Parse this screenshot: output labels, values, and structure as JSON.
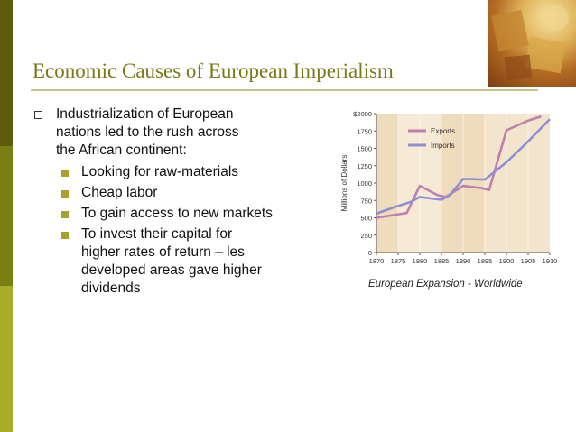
{
  "slide": {
    "title": "Economic Causes of European Imperialism",
    "main_bullet": [
      "Industrialization of European",
      "nations led to the rush across",
      "the African continent:"
    ],
    "sub_bullets": [
      {
        "lines": [
          "Looking for raw-materials"
        ]
      },
      {
        "lines": [
          "Cheap labor"
        ]
      },
      {
        "lines": [
          "To gain access to new markets"
        ]
      },
      {
        "lines": [
          "To invest their capital for",
          "higher rates of return – les",
          "developed areas gave higher",
          "dividends"
        ]
      }
    ],
    "caption": "European Expansion - Worldwide",
    "colors": {
      "accent": "#7a7817",
      "bullet": "#a6a12b",
      "exports": "#c07fb0",
      "imports": "#8f90d4"
    }
  },
  "chart_data": {
    "type": "line",
    "x": [
      1870,
      1875,
      1880,
      1885,
      1890,
      1895,
      1900,
      1905,
      1910
    ],
    "x_tick_labels": [
      "1870",
      "1875",
      "1880",
      "1885",
      "1890",
      "1895",
      "1900",
      "1905",
      "1910"
    ],
    "y_tick_labels": [
      "0",
      "250",
      "500",
      "750",
      "1000",
      "1250",
      "1500",
      "1750",
      "$2000"
    ],
    "ylabel": "Millions of Dollars",
    "ylim": [
      0,
      2000
    ],
    "xlim": [
      1870,
      1910
    ],
    "series": [
      {
        "name": "Exports",
        "x": [
          1870,
          1873,
          1877,
          1880,
          1884,
          1886,
          1890,
          1894,
          1896,
          1900,
          1905,
          1908
        ],
        "y": [
          500,
          530,
          570,
          960,
          830,
          800,
          960,
          930,
          900,
          1760,
          1900,
          1960
        ]
      },
      {
        "name": "Imports",
        "x": [
          1870,
          1874,
          1878,
          1880,
          1885,
          1887,
          1890,
          1895,
          1900,
          1905,
          1910
        ],
        "y": [
          560,
          650,
          730,
          800,
          760,
          830,
          1060,
          1050,
          1300,
          1600,
          1920
        ]
      }
    ],
    "legend": "top-center",
    "grid": false
  }
}
